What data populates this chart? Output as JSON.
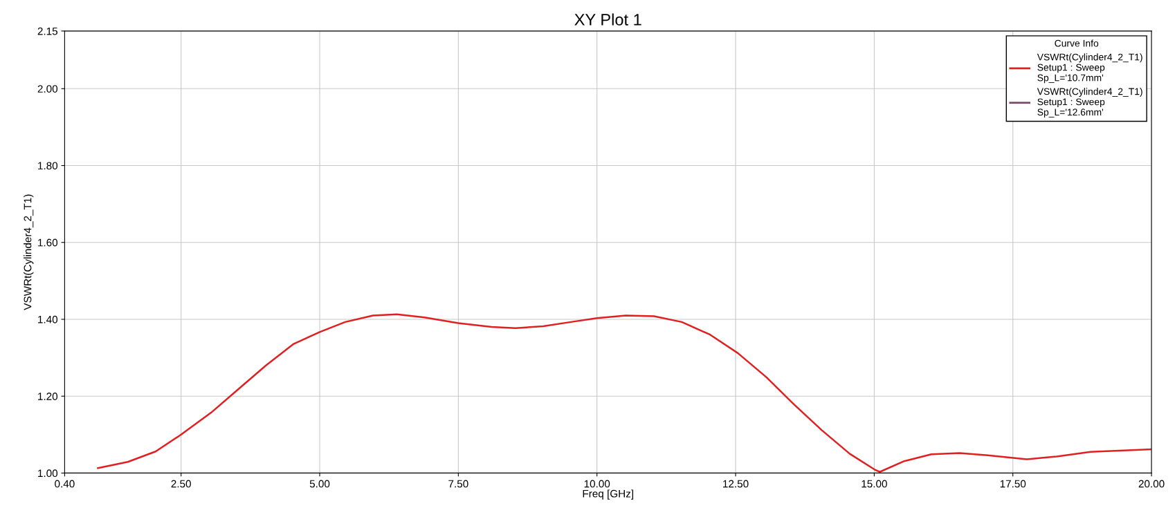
{
  "chart_data": {
    "type": "line",
    "title": "XY Plot 1",
    "xlabel": "Freq [GHz]",
    "ylabel": "VSWRt(Cylinder4_2_T1)",
    "legend_title": "Curve Info",
    "xlim": [
      0.4,
      20
    ],
    "ylim": [
      1.0,
      2.15
    ],
    "xticks": [
      {
        "value": 0.4,
        "label": "0.40"
      },
      {
        "value": 2.5,
        "label": "2.50"
      },
      {
        "value": 5,
        "label": "5.00"
      },
      {
        "value": 7.5,
        "label": "7.50"
      },
      {
        "value": 10,
        "label": "10.00"
      },
      {
        "value": 12.5,
        "label": "12.50"
      },
      {
        "value": 15,
        "label": "15.00"
      },
      {
        "value": 17.5,
        "label": "17.50"
      },
      {
        "value": 20,
        "label": "20.00"
      }
    ],
    "yticks": [
      {
        "value": 1.0,
        "label": "1.00"
      },
      {
        "value": 1.2,
        "label": "1.20"
      },
      {
        "value": 1.4,
        "label": "1.40"
      },
      {
        "value": 1.6,
        "label": "1.60"
      },
      {
        "value": 1.8,
        "label": "1.80"
      },
      {
        "value": 2.0,
        "label": "2.00"
      },
      {
        "value": 2.15,
        "label": "2.15"
      }
    ],
    "grid": true,
    "legend": "top right",
    "marker": "none",
    "line_style": "solid",
    "series": [
      {
        "name": "VSWRt(Cylinder4_2_T1)\nSetup1 : Sweep\nSp_L='10.7mm'",
        "color": "#e02020",
        "x": [
          1.0,
          1.54,
          2.04,
          2.5,
          3.04,
          3.53,
          4.03,
          4.53,
          5.0,
          5.46,
          5.96,
          6.39,
          6.89,
          7.5,
          8.1,
          8.53,
          9.03,
          9.53,
          10.0,
          10.52,
          11.03,
          11.53,
          12.04,
          12.54,
          13.05,
          13.55,
          14.05,
          14.56,
          15.02,
          15.1,
          15.54,
          16.03,
          16.54,
          17.05,
          17.75,
          18.29,
          18.9,
          20.0
        ],
        "values": [
          1.013,
          1.029,
          1.056,
          1.1,
          1.157,
          1.218,
          1.28,
          1.336,
          1.367,
          1.393,
          1.41,
          1.413,
          1.405,
          1.39,
          1.38,
          1.377,
          1.382,
          1.393,
          1.403,
          1.41,
          1.408,
          1.393,
          1.36,
          1.312,
          1.25,
          1.179,
          1.112,
          1.05,
          1.008,
          1.003,
          1.031,
          1.049,
          1.052,
          1.046,
          1.036,
          1.043,
          1.055,
          1.062
        ]
      },
      {
        "name": "VSWRt(Cylinder4_2_T1)\nSetup1 : Sweep\nSp_L='12.6mm'",
        "color": "#7a4a66"
      }
    ]
  }
}
